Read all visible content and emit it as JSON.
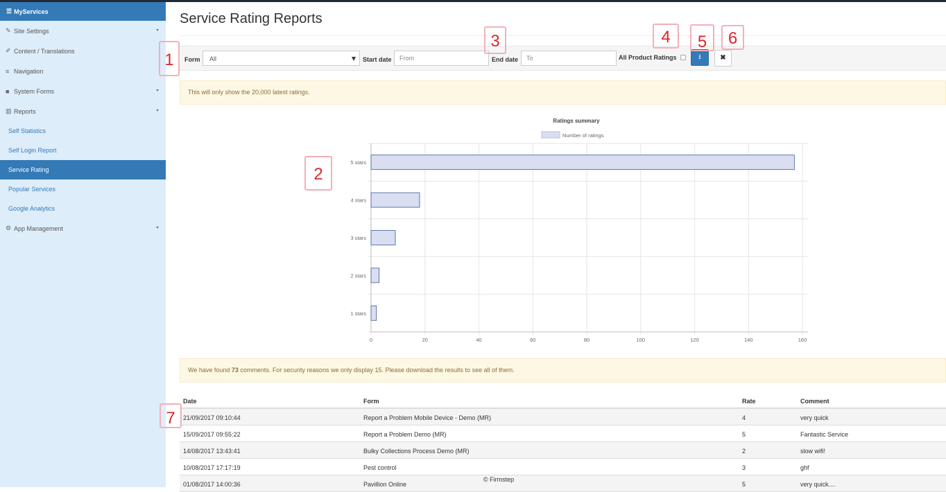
{
  "sidebar": {
    "brand": "MyServices",
    "brand_icon": "list-icon",
    "items": [
      {
        "label": "Site Settings",
        "icon": "wrench-icon"
      },
      {
        "label": "Content / Translations",
        "icon": "pencil-icon"
      },
      {
        "label": "Navigation",
        "icon": "list-icon"
      },
      {
        "label": "System Forms",
        "icon": "folder-icon"
      },
      {
        "label": "Reports",
        "icon": "bar-chart-icon"
      }
    ],
    "sub_items": [
      "Self Statistics",
      "Self Login Report",
      "Service Rating",
      "Popular Services",
      "Google Analytics"
    ],
    "active": "Service Rating",
    "last_item": {
      "label": "App Management",
      "icon": "gear-icon"
    }
  },
  "page": {
    "title": "Service Rating Reports"
  },
  "filter": {
    "form_label": "Form",
    "form_value": "All",
    "start_label": "Start date",
    "start_placeholder": "From",
    "end_label": "End date",
    "end_placeholder": "To",
    "all_product_label": "All Product Ratings",
    "all_product_checked": false,
    "download_icon": "download-icon",
    "clear_icon": "close-icon"
  },
  "alerts": {
    "limit": "This will only show the 20,000 latest ratings.",
    "found_prefix": "We have found ",
    "found_count": "73",
    "found_suffix": " comments. For security reasons we only display 15. Please download the results to see all of them."
  },
  "chart_data": {
    "type": "bar",
    "orientation": "horizontal",
    "title": "Ratings summary",
    "categories": [
      "5 stars",
      "4 stars",
      "3 stars",
      "2 stars",
      "1 stars"
    ],
    "series": [
      {
        "name": "Number of ratings",
        "values": [
          157,
          18,
          9,
          3,
          2
        ]
      }
    ],
    "xlim": [
      0,
      160
    ],
    "xticks": [
      "0",
      "20",
      "40",
      "60",
      "80",
      "100",
      "120",
      "140",
      "160"
    ],
    "grid": true,
    "legend": "top",
    "bar_fill": "#d9def1",
    "bar_stroke": "#3f5a98"
  },
  "table": {
    "headers": [
      "Date",
      "Form",
      "Rate",
      "Comment"
    ],
    "rows": [
      [
        "21/09/2017 09:10:44",
        "Report a Problem Mobile Device - Demo (MR)",
        "4",
        "very quick"
      ],
      [
        "15/09/2017 09:55:22",
        "Report a Problem Demo (MR)",
        "5",
        "Fantastic Service"
      ],
      [
        "14/08/2017 13:43:41",
        "Bulky Collections Process Demo (MR)",
        "2",
        "slow wifi!"
      ],
      [
        "10/08/2017 17:17:19",
        "Pest control",
        "3",
        "ghf"
      ],
      [
        "01/08/2017 14:00:36",
        "Pavillion Online",
        "5",
        "very quick...."
      ]
    ]
  },
  "footer": "© Firmstep",
  "annotations": [
    "1",
    "2",
    "3",
    "4",
    "5",
    "6",
    "7"
  ],
  "colors": {
    "sidebar_bg": "#deedfa",
    "brand_blue": "#337ab7",
    "annotation_red": "#d9262e"
  }
}
